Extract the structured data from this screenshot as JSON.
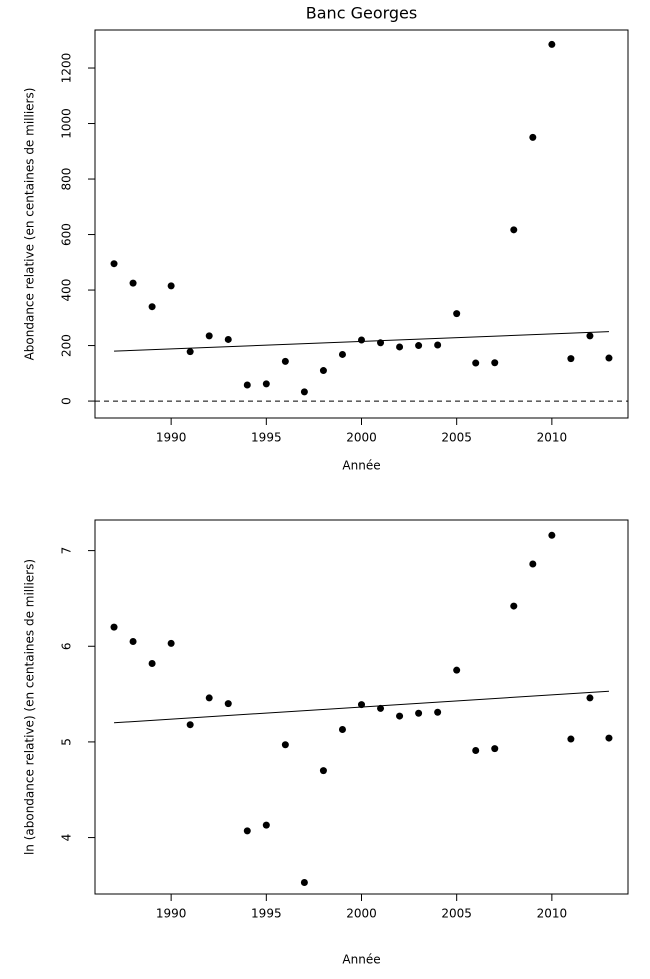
{
  "chart_data": [
    {
      "type": "scatter",
      "title": "Banc Georges",
      "xlabel": "Année",
      "ylabel": "Abondance relative (en centaines de milliers)",
      "x": [
        1987,
        1988,
        1989,
        1990,
        1991,
        1992,
        1993,
        1994,
        1995,
        1996,
        1997,
        1998,
        1999,
        2000,
        2001,
        2002,
        2003,
        2004,
        2005,
        2006,
        2007,
        2008,
        2009,
        2010,
        2011,
        2012,
        2013
      ],
      "values": [
        495,
        425,
        340,
        415,
        178,
        235,
        222,
        58,
        62,
        143,
        33,
        110,
        168,
        220,
        210,
        195,
        200,
        202,
        315,
        137,
        138,
        617,
        950,
        1285,
        153,
        235,
        155
      ],
      "color": "#000000",
      "trend": {
        "x": [
          1987,
          2013
        ],
        "values": [
          180,
          250
        ]
      },
      "hline": 0,
      "xlim": [
        1986,
        2014
      ],
      "xticks": [
        1990,
        1995,
        2000,
        2005,
        2010
      ],
      "ylim": [
        -61,
        1337
      ],
      "yticks": [
        0,
        200,
        400,
        600,
        800,
        1000,
        1200
      ]
    },
    {
      "type": "scatter",
      "xlabel": "Année",
      "ylabel": "ln (abondance relative) (en centaines de milliers)",
      "x": [
        1987,
        1988,
        1989,
        1990,
        1991,
        1992,
        1993,
        1994,
        1995,
        1996,
        1997,
        1998,
        1999,
        2000,
        2001,
        2002,
        2003,
        2004,
        2005,
        2006,
        2007,
        2008,
        2009,
        2010,
        2011,
        2012,
        2013
      ],
      "values": [
        6.2,
        6.05,
        5.82,
        6.03,
        5.18,
        5.46,
        5.4,
        4.07,
        4.13,
        4.97,
        3.53,
        4.7,
        5.13,
        5.39,
        5.35,
        5.27,
        5.3,
        5.31,
        5.75,
        4.91,
        4.93,
        6.42,
        6.86,
        7.16,
        5.03,
        5.46,
        5.04
      ],
      "color": "#000000",
      "trend": {
        "x": [
          1987,
          2013
        ],
        "values": [
          5.2,
          5.53
        ]
      },
      "xlim": [
        1986,
        2014
      ],
      "xticks": [
        1990,
        1995,
        2000,
        2005,
        2010
      ],
      "ylim": [
        3.41,
        7.32
      ],
      "yticks": [
        4,
        5,
        6,
        7
      ]
    }
  ]
}
